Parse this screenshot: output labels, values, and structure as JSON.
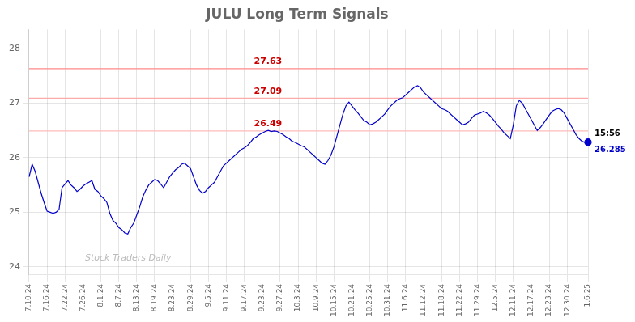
{
  "chart_data": {
    "type": "line",
    "title": "JULU Long Term Signals",
    "categories": [
      "7.10.24",
      null,
      null,
      null,
      null,
      null,
      "7.16.24",
      null,
      null,
      null,
      null,
      null,
      "7.22.24",
      null,
      null,
      null,
      null,
      null,
      "7.26.24",
      null,
      null,
      null,
      null,
      null,
      "8.1.24",
      null,
      null,
      null,
      null,
      null,
      "8.7.24",
      null,
      null,
      null,
      null,
      null,
      "8.13.24",
      null,
      null,
      null,
      null,
      null,
      "8.19.24",
      null,
      null,
      null,
      null,
      null,
      "8.23.24",
      null,
      null,
      null,
      null,
      null,
      "8.29.24",
      null,
      null,
      null,
      null,
      null,
      "9.5.24",
      null,
      null,
      null,
      null,
      null,
      "9.11.24",
      null,
      null,
      null,
      null,
      null,
      "9.17.24",
      null,
      null,
      null,
      null,
      null,
      "9.23.24",
      null,
      null,
      null,
      null,
      null,
      "9.27.24",
      null,
      null,
      null,
      null,
      null,
      "10.3.24",
      null,
      null,
      null,
      null,
      null,
      "10.9.24",
      null,
      null,
      null,
      null,
      null,
      "10.15.24",
      null,
      null,
      null,
      null,
      null,
      "10.21.24",
      null,
      null,
      null,
      null,
      null,
      "10.25.24",
      null,
      null,
      null,
      null,
      null,
      "10.31.24",
      null,
      null,
      null,
      null,
      null,
      "11.6.24",
      null,
      null,
      null,
      null,
      null,
      "11.12.24",
      null,
      null,
      null,
      null,
      null,
      "11.18.24",
      null,
      null,
      null,
      null,
      null,
      "11.22.24",
      null,
      null,
      null,
      null,
      null,
      "11.29.24",
      null,
      null,
      null,
      null,
      null,
      "12.5.24",
      null,
      null,
      null,
      null,
      null,
      "12.11.24",
      null,
      null,
      null,
      null,
      null,
      "12.17.24",
      null,
      null,
      null,
      null,
      null,
      "12.23.24",
      null,
      null,
      null,
      null,
      null,
      "12.30.24",
      null,
      null,
      null,
      null,
      null,
      null,
      "1.6.25"
    ],
    "values": [
      25.65,
      25.88,
      25.75,
      25.55,
      25.35,
      25.18,
      25.02,
      25.0,
      24.98,
      25.0,
      25.05,
      25.45,
      25.52,
      25.58,
      25.5,
      25.45,
      25.38,
      25.42,
      25.48,
      25.52,
      25.55,
      25.58,
      25.42,
      25.38,
      25.3,
      25.25,
      25.18,
      24.98,
      24.85,
      24.8,
      24.72,
      24.68,
      24.62,
      24.6,
      24.72,
      24.8,
      24.95,
      25.1,
      25.28,
      25.4,
      25.5,
      25.55,
      25.6,
      25.58,
      25.52,
      25.45,
      25.55,
      25.65,
      25.72,
      25.78,
      25.82,
      25.88,
      25.9,
      25.85,
      25.8,
      25.65,
      25.5,
      25.4,
      25.35,
      25.38,
      25.45,
      25.5,
      25.55,
      25.65,
      25.75,
      25.85,
      25.9,
      25.95,
      26.0,
      26.05,
      26.1,
      26.15,
      26.18,
      26.22,
      26.28,
      26.35,
      26.38,
      26.42,
      26.45,
      26.48,
      26.5,
      26.48,
      26.49,
      26.48,
      26.45,
      26.42,
      26.38,
      26.35,
      26.3,
      26.28,
      26.25,
      26.22,
      26.2,
      26.15,
      26.1,
      26.05,
      26.0,
      25.95,
      25.9,
      25.88,
      25.95,
      26.05,
      26.2,
      26.4,
      26.6,
      26.8,
      26.95,
      27.02,
      26.95,
      26.88,
      26.82,
      26.75,
      26.68,
      26.65,
      26.6,
      26.62,
      26.65,
      26.7,
      26.75,
      26.8,
      26.88,
      26.95,
      27.0,
      27.05,
      27.08,
      27.1,
      27.15,
      27.2,
      27.25,
      27.3,
      27.32,
      27.28,
      27.2,
      27.15,
      27.1,
      27.05,
      27.0,
      26.95,
      26.9,
      26.88,
      26.85,
      26.8,
      26.75,
      26.7,
      26.65,
      26.6,
      26.62,
      26.65,
      26.72,
      26.78,
      26.8,
      26.82,
      26.85,
      26.82,
      26.78,
      26.72,
      26.65,
      26.58,
      26.52,
      26.45,
      26.4,
      26.35,
      26.6,
      26.95,
      27.05,
      27.0,
      26.9,
      26.8,
      26.7,
      26.6,
      26.5,
      26.55,
      26.62,
      26.7,
      26.78,
      26.85,
      26.88,
      26.9,
      26.88,
      26.82,
      26.72,
      26.62,
      26.52,
      26.42,
      26.35,
      26.3,
      26.28,
      26.285
    ],
    "color": "#0000cc",
    "ylim": [
      23.85,
      28.35
    ],
    "yticks": [
      24,
      25,
      26,
      27,
      28
    ],
    "grid": true,
    "annotations": [
      {
        "type": "hline",
        "y": 27.63,
        "label": "27.63",
        "color": "#ff8888",
        "text_color": "#cc0000"
      },
      {
        "type": "hline",
        "y": 27.09,
        "label": "27.09",
        "color": "#ffaaaa",
        "text_color": "#cc0000"
      },
      {
        "type": "hline",
        "y": 26.49,
        "label": "26.49",
        "color": "#ffbbbb",
        "text_color": "#cc0000"
      },
      {
        "type": "last_point",
        "value": 26.285,
        "label": "26.285",
        "time": "15:56"
      },
      {
        "type": "watermark",
        "text": "Stock Traders Daily",
        "color": "#bbbbbb"
      }
    ]
  }
}
